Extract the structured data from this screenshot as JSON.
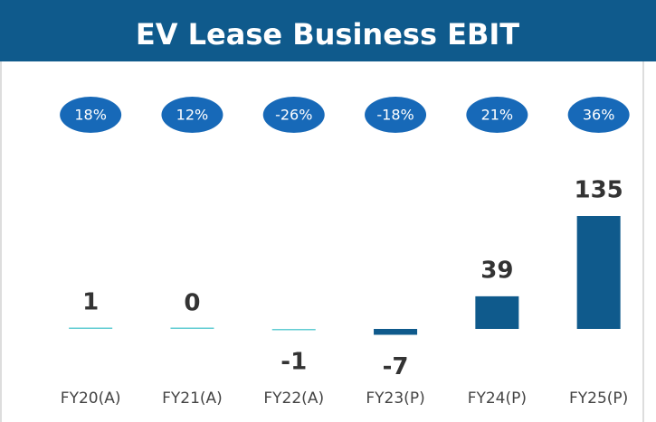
{
  "chart_data": {
    "type": "bar",
    "title": "EV Lease Business EBIT",
    "categories": [
      "FY20(A)",
      "FY21(A)",
      "FY22(A)",
      "FY23(P)",
      "FY24(P)",
      "FY25(P)"
    ],
    "values": [
      1,
      0,
      -1,
      -7,
      39,
      135
    ],
    "colors": [
      "#62cdd3",
      "#62cdd3",
      "#62cdd3",
      "#0f5a8c",
      "#0f5a8c",
      "#0f5a8c"
    ],
    "margin_values": [
      18,
      12,
      -26,
      -18,
      21,
      36
    ],
    "margin_labels": [
      "18%",
      "12%",
      "-26%",
      "-18%",
      "21%",
      "36%"
    ],
    "margin_color": "#1769b8"
  }
}
